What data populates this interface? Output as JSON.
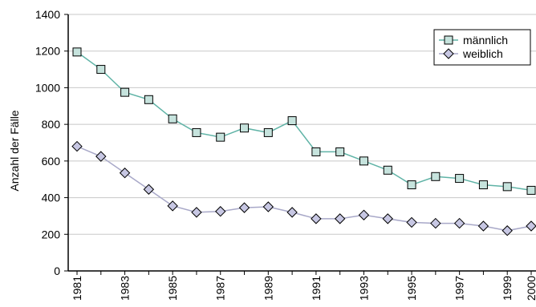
{
  "chart_data": {
    "type": "line",
    "ylabel": "Anzahl der Fälle",
    "xlabel": "",
    "title": "",
    "ylim": [
      0,
      1400
    ],
    "yticks": [
      0,
      200,
      400,
      600,
      800,
      1000,
      1200,
      1400
    ],
    "x": [
      1981,
      1982,
      1983,
      1984,
      1985,
      1986,
      1987,
      1988,
      1989,
      1990,
      1991,
      1992,
      1993,
      1994,
      1995,
      1996,
      1997,
      1998,
      1999,
      2000
    ],
    "xtick_labels": [
      "1981",
      "1983",
      "1985",
      "1987",
      "1989",
      "1991",
      "1993",
      "1995",
      "1997",
      "1999",
      "2000"
    ],
    "xtick_values": [
      1981,
      1983,
      1985,
      1987,
      1989,
      1991,
      1993,
      1995,
      1997,
      1999,
      2000
    ],
    "grid": "horizontal",
    "legend_position": "top-right",
    "series": [
      {
        "name": "männlich",
        "marker": "square",
        "line_color": "#5fb3a6",
        "marker_fill": "#c6e3dd",
        "values": [
          1195,
          1100,
          975,
          935,
          830,
          755,
          730,
          780,
          755,
          820,
          650,
          650,
          600,
          550,
          470,
          515,
          505,
          470,
          460,
          440
        ]
      },
      {
        "name": "weiblich",
        "marker": "diamond",
        "line_color": "#a8a8c8",
        "marker_fill": "#c7c7e3",
        "values": [
          680,
          625,
          535,
          445,
          355,
          320,
          325,
          345,
          350,
          320,
          285,
          285,
          305,
          285,
          265,
          260,
          260,
          245,
          220,
          245
        ]
      }
    ]
  }
}
